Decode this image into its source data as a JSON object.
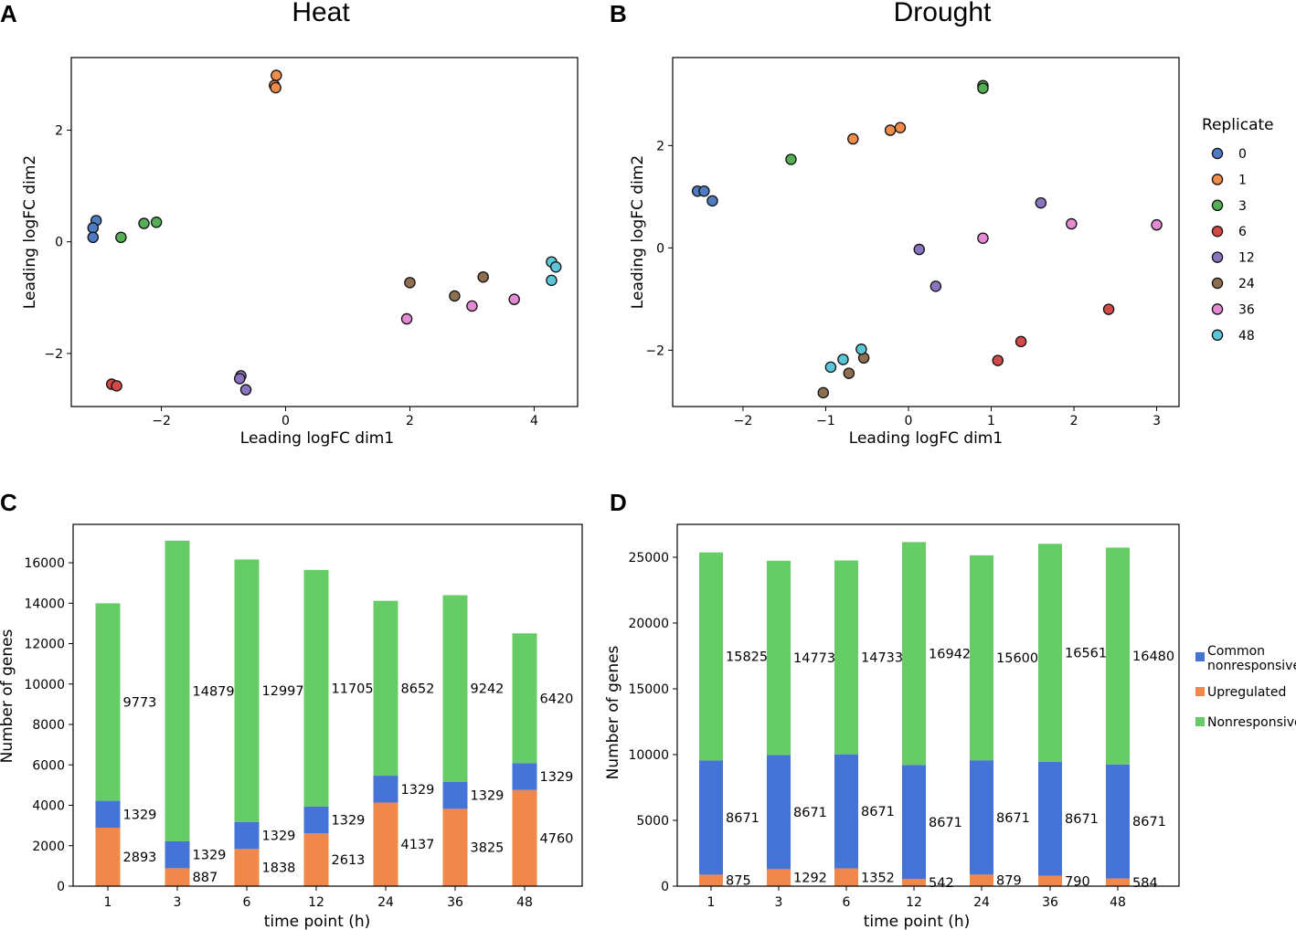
{
  "chart_data": [
    {
      "type": "scatter",
      "panel": "A",
      "title": "Heat",
      "xlabel": "Leading logFC dim1",
      "ylabel": "Leading logFC dim2",
      "xlim": [
        -3.45,
        4.7
      ],
      "ylim": [
        -2.95,
        3.3
      ],
      "xticks": [
        -2,
        0,
        2,
        4
      ],
      "xtick_labels": [
        "−2",
        "0",
        "2",
        "4"
      ],
      "yticks": [
        -2,
        0,
        2
      ],
      "ytick_labels": [
        "−2",
        "0",
        "2"
      ],
      "points": [
        {
          "x": -3.05,
          "y": 0.38,
          "group": "0"
        },
        {
          "x": -3.1,
          "y": 0.25,
          "group": "0"
        },
        {
          "x": -3.1,
          "y": 0.08,
          "group": "0"
        },
        {
          "x": -0.15,
          "y": 2.98,
          "group": "1"
        },
        {
          "x": -0.18,
          "y": 2.8,
          "group": "1"
        },
        {
          "x": -0.16,
          "y": 2.76,
          "group": "1"
        },
        {
          "x": -2.65,
          "y": 0.08,
          "group": "3"
        },
        {
          "x": -2.28,
          "y": 0.33,
          "group": "3"
        },
        {
          "x": -2.08,
          "y": 0.35,
          "group": "3"
        },
        {
          "x": -2.8,
          "y": -2.55,
          "group": "6"
        },
        {
          "x": -2.72,
          "y": -2.58,
          "group": "6"
        },
        {
          "x": -0.72,
          "y": -2.4,
          "group": "12"
        },
        {
          "x": -0.74,
          "y": -2.45,
          "group": "12"
        },
        {
          "x": -0.64,
          "y": -2.65,
          "group": "12"
        },
        {
          "x": 2.0,
          "y": -0.73,
          "group": "24"
        },
        {
          "x": 2.72,
          "y": -0.97,
          "group": "24"
        },
        {
          "x": 3.18,
          "y": -0.63,
          "group": "24"
        },
        {
          "x": 1.95,
          "y": -1.38,
          "group": "36"
        },
        {
          "x": 3.0,
          "y": -1.15,
          "group": "36"
        },
        {
          "x": 3.68,
          "y": -1.03,
          "group": "36"
        },
        {
          "x": 4.28,
          "y": -0.36,
          "group": "48"
        },
        {
          "x": 4.35,
          "y": -0.45,
          "group": "48"
        },
        {
          "x": 4.28,
          "y": -0.69,
          "group": "48"
        }
      ]
    },
    {
      "type": "scatter",
      "panel": "B",
      "title": "Drought",
      "xlabel": "Leading logFC dim1",
      "ylabel": "Leading logFC dim2",
      "xlim": [
        -2.85,
        3.27
      ],
      "ylim": [
        -3.1,
        3.72
      ],
      "xticks": [
        -2,
        -1,
        0,
        1,
        2,
        3
      ],
      "xtick_labels": [
        "−2",
        "−1",
        "0",
        "1",
        "2",
        "3"
      ],
      "yticks": [
        -2,
        0,
        2
      ],
      "ytick_labels": [
        "−2",
        "0",
        "2"
      ],
      "legend": {
        "title": "Replicate",
        "entries": [
          "0",
          "1",
          "3",
          "6",
          "12",
          "24",
          "36",
          "48"
        ],
        "location": "right"
      },
      "points": [
        {
          "x": -2.55,
          "y": 1.11,
          "group": "0"
        },
        {
          "x": -2.47,
          "y": 1.11,
          "group": "0"
        },
        {
          "x": -2.37,
          "y": 0.92,
          "group": "0"
        },
        {
          "x": -0.67,
          "y": 2.13,
          "group": "1"
        },
        {
          "x": -0.22,
          "y": 2.3,
          "group": "1"
        },
        {
          "x": -0.1,
          "y": 2.35,
          "group": "1"
        },
        {
          "x": -1.42,
          "y": 1.73,
          "group": "3"
        },
        {
          "x": 0.9,
          "y": 3.17,
          "group": "3"
        },
        {
          "x": 0.9,
          "y": 3.12,
          "group": "3"
        },
        {
          "x": 1.08,
          "y": -2.2,
          "group": "6"
        },
        {
          "x": 1.36,
          "y": -1.83,
          "group": "6"
        },
        {
          "x": 2.42,
          "y": -1.2,
          "group": "6"
        },
        {
          "x": 0.13,
          "y": -0.03,
          "group": "12"
        },
        {
          "x": 0.33,
          "y": -0.75,
          "group": "12"
        },
        {
          "x": 1.6,
          "y": 0.88,
          "group": "12"
        },
        {
          "x": -1.03,
          "y": -2.83,
          "group": "24"
        },
        {
          "x": -0.72,
          "y": -2.45,
          "group": "24"
        },
        {
          "x": -0.54,
          "y": -2.15,
          "group": "24"
        },
        {
          "x": 0.9,
          "y": 0.19,
          "group": "36"
        },
        {
          "x": 1.97,
          "y": 0.47,
          "group": "36"
        },
        {
          "x": 3.0,
          "y": 0.45,
          "group": "36"
        },
        {
          "x": -0.94,
          "y": -2.33,
          "group": "48"
        },
        {
          "x": -0.79,
          "y": -2.18,
          "group": "48"
        },
        {
          "x": -0.57,
          "y": -1.98,
          "group": "48"
        }
      ]
    },
    {
      "type": "bar",
      "stacked": true,
      "panel": "C",
      "xlabel": "time  point (h)",
      "ylabel": "Number of genes",
      "categories": [
        "1",
        "3",
        "6",
        "12",
        "24",
        "36",
        "48"
      ],
      "ylim": [
        0,
        17900
      ],
      "yticks": [
        0,
        2000,
        4000,
        6000,
        8000,
        10000,
        12000,
        14000,
        16000
      ],
      "series": [
        {
          "name": "Upregulated",
          "values": [
            2893,
            887,
            1838,
            2613,
            4137,
            3825,
            4760
          ]
        },
        {
          "name": "Common nonresponsive",
          "values": [
            1329,
            1329,
            1329,
            1329,
            1329,
            1329,
            1329
          ]
        },
        {
          "name": "Nonresponsive",
          "values": [
            9773,
            14879,
            12997,
            11705,
            8652,
            9242,
            6420
          ]
        }
      ]
    },
    {
      "type": "bar",
      "stacked": true,
      "panel": "D",
      "xlabel": "time  point (h)",
      "ylabel": "Number of genes",
      "categories": [
        "1",
        "3",
        "6",
        "12",
        "24",
        "36",
        "48"
      ],
      "ylim": [
        0,
        27500
      ],
      "yticks": [
        0,
        5000,
        10000,
        15000,
        20000,
        25000
      ],
      "legend": {
        "entries": [
          "Common\nnonresponsive",
          "Upregulated",
          "Nonresponsive"
        ],
        "location": "right"
      },
      "series": [
        {
          "name": "Upregulated",
          "values": [
            875,
            1292,
            1352,
            542,
            879,
            790,
            584
          ]
        },
        {
          "name": "Common nonresponsive",
          "values": [
            8671,
            8671,
            8671,
            8671,
            8671,
            8671,
            8671
          ]
        },
        {
          "name": "Nonresponsive",
          "values": [
            15825,
            14773,
            14733,
            16942,
            15600,
            16561,
            16480
          ]
        }
      ]
    }
  ],
  "replicate_colors": {
    "0": "#4f7bc1",
    "1": "#ef8c4b",
    "3": "#55ad56",
    "6": "#d24a47",
    "12": "#8a74c0",
    "24": "#8e6f52",
    "36": "#e28ad2",
    "48": "#5bc6d8"
  },
  "bar_colors": {
    "Upregulated": "#f0884c",
    "Common nonresponsive": "#4573d6",
    "Nonresponsive": "#66cc66"
  }
}
